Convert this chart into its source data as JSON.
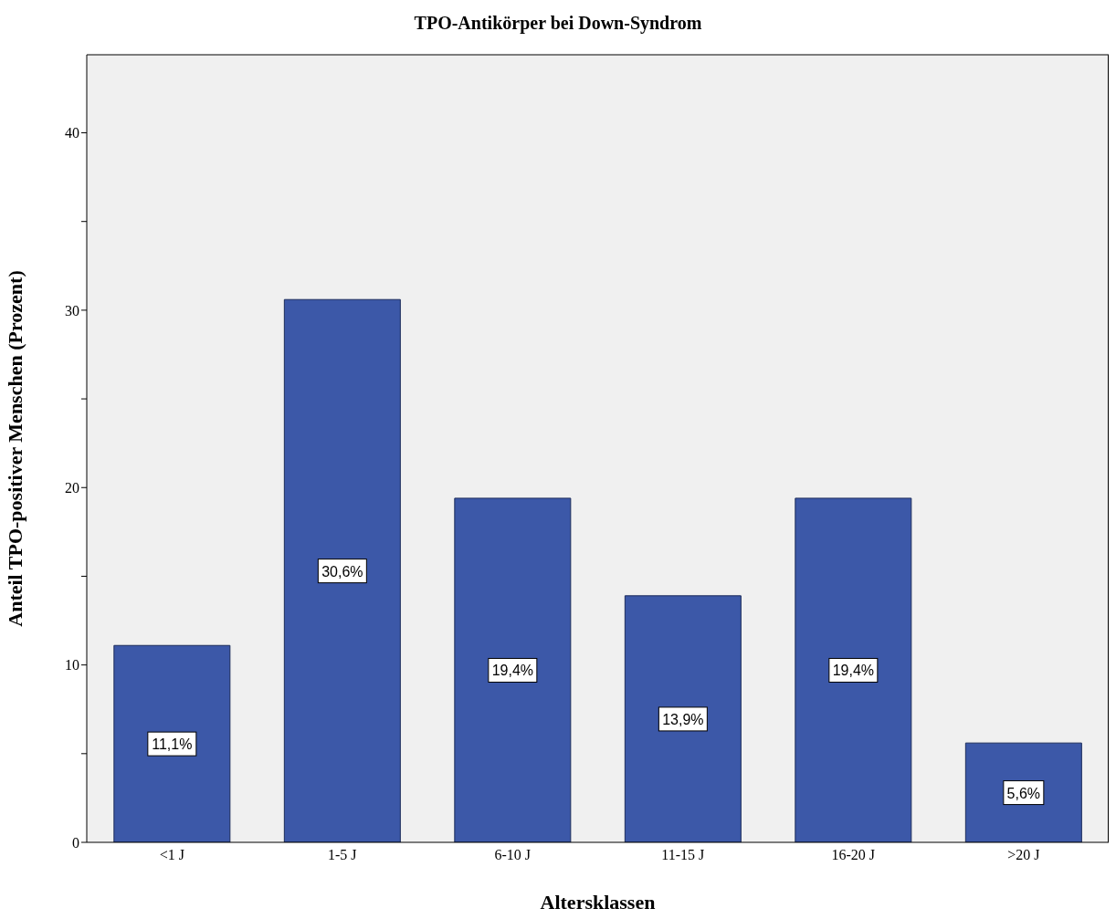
{
  "chart_data": {
    "type": "bar",
    "title": "TPO-Antikörper bei Down-Syndrom",
    "xlabel": "Altersklassen",
    "ylabel": "Anteil TPO-positiver Menschen (Prozent)",
    "categories": [
      "<1 J",
      "1-5 J",
      "6-10 J",
      "11-15 J",
      "16-20 J",
      ">20 J"
    ],
    "values": [
      11.1,
      30.6,
      19.4,
      13.9,
      19.4,
      5.6
    ],
    "value_labels": [
      "11,1%",
      "30,6%",
      "19,4%",
      "13,9%",
      "19,4%",
      "5,6%"
    ],
    "color": "#3c58a8",
    "ylim": [
      0,
      44.4
    ],
    "yticks": [
      0,
      {
        "value": 5,
        "label": null
      },
      10,
      {
        "value": 15,
        "label": null
      },
      20,
      {
        "value": 25,
        "label": null
      },
      30,
      {
        "value": 35,
        "label": null
      },
      40
    ],
    "grid": false,
    "legend": false
  }
}
